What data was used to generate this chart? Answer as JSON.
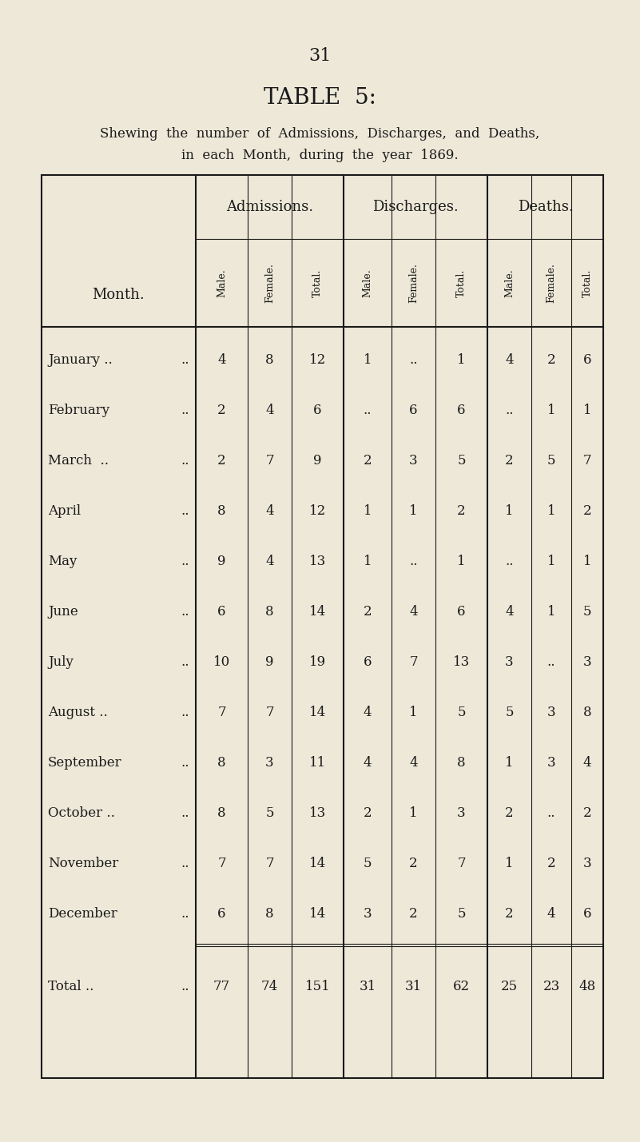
{
  "page_number": "31",
  "title": "TABLE  5:",
  "subtitle_line1": "Shewing  the  number  of  Admissions,  Discharges,  and  Deaths,",
  "subtitle_line2": "in  each  Month,  during  the  year  1869.",
  "background_color": "#EDE8D8",
  "text_color": "#1a1a1a",
  "months": [
    "January ..",
    "February",
    "March  ..",
    "April",
    "May",
    "June",
    "July",
    "August ..",
    "September",
    "October ..",
    "November",
    "December"
  ],
  "month_dots": [
    " ..",
    " ..",
    " ..",
    " ..",
    " ..",
    " ..",
    " ..",
    " ..",
    " ..",
    " ..",
    " ..",
    " .."
  ],
  "admissions_male": [
    4,
    2,
    2,
    8,
    9,
    6,
    10,
    7,
    8,
    8,
    7,
    6
  ],
  "admissions_female": [
    8,
    4,
    7,
    4,
    4,
    8,
    9,
    7,
    3,
    5,
    7,
    8
  ],
  "admissions_total": [
    12,
    6,
    9,
    12,
    13,
    14,
    19,
    14,
    11,
    13,
    14,
    14
  ],
  "discharges_male": [
    "1",
    "..",
    "2",
    "1",
    "1",
    "2",
    "6",
    "4",
    "4",
    "2",
    "5",
    "3"
  ],
  "discharges_female": [
    "..",
    "6",
    "3",
    "1",
    "..",
    "4",
    "7",
    "1",
    "4",
    "1",
    "2",
    "2"
  ],
  "discharges_total": [
    "1",
    "6",
    "5",
    "2",
    "1",
    "6",
    "13",
    "5",
    "8",
    "3",
    "7",
    "5"
  ],
  "deaths_male": [
    "4",
    "..",
    "2",
    "1",
    "..",
    "4",
    "3",
    "5",
    "1",
    "2",
    "1",
    "2"
  ],
  "deaths_female": [
    "2",
    "1",
    "5",
    "1",
    "1",
    "1",
    "..",
    "3",
    "3",
    "..",
    "2",
    "4"
  ],
  "deaths_total": [
    "6",
    "1",
    "7",
    "2",
    "1",
    "5",
    "3",
    "8",
    "4",
    "2",
    "3",
    "6"
  ],
  "total_adm_male": "77",
  "total_adm_female": "74",
  "total_adm_total": "151",
  "total_dis_male": "31",
  "total_dis_female": "31",
  "total_dis_total": "62",
  "total_dea_male": "25",
  "total_dea_female": "23",
  "total_dea_total": "48"
}
